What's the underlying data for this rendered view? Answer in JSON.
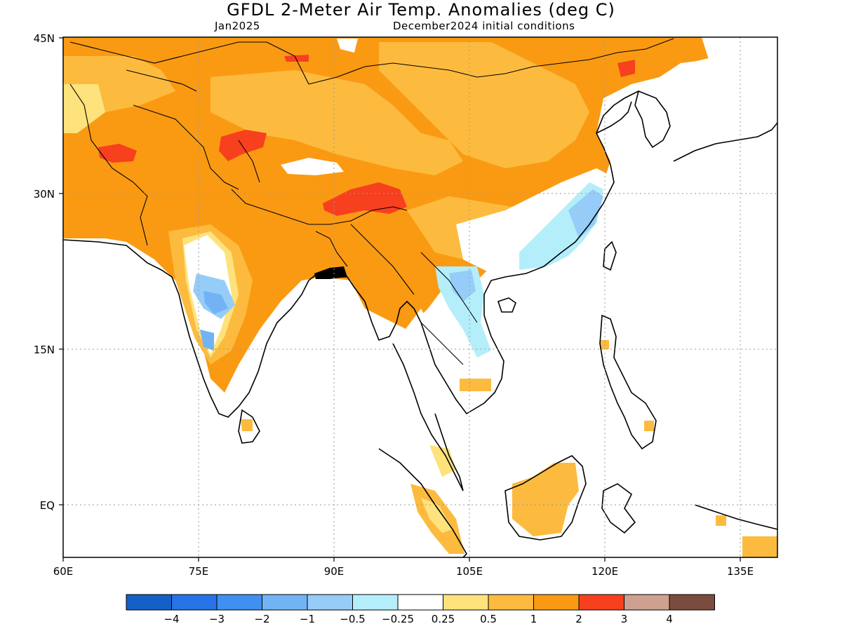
{
  "header": {
    "title": "GFDL 2-Meter Air Temp. Anomalies (deg C)",
    "left_subtitle": "Jan2025",
    "right_subtitle": "December2024 initial conditions"
  },
  "axes": {
    "lat_labels": [
      "45N",
      "30N",
      "15N",
      "EQ"
    ],
    "lon_labels": [
      "60E",
      "75E",
      "90E",
      "105E",
      "120E",
      "135E"
    ]
  },
  "colorbar": {
    "colors": [
      "#1560c8",
      "#2573e6",
      "#3f90f0",
      "#72b3f5",
      "#95cdf8",
      "#b4eefa",
      "#ffffff",
      "#fee27c",
      "#fcbb3f",
      "#fa9a13",
      "#f7401e",
      "#cea090",
      "#7a4c3d"
    ],
    "labels": [
      "−4",
      "−3",
      "−2",
      "−1",
      "−0.5",
      "−0.25",
      "0.25",
      "0.5",
      "1",
      "2",
      "3",
      "4"
    ]
  }
}
